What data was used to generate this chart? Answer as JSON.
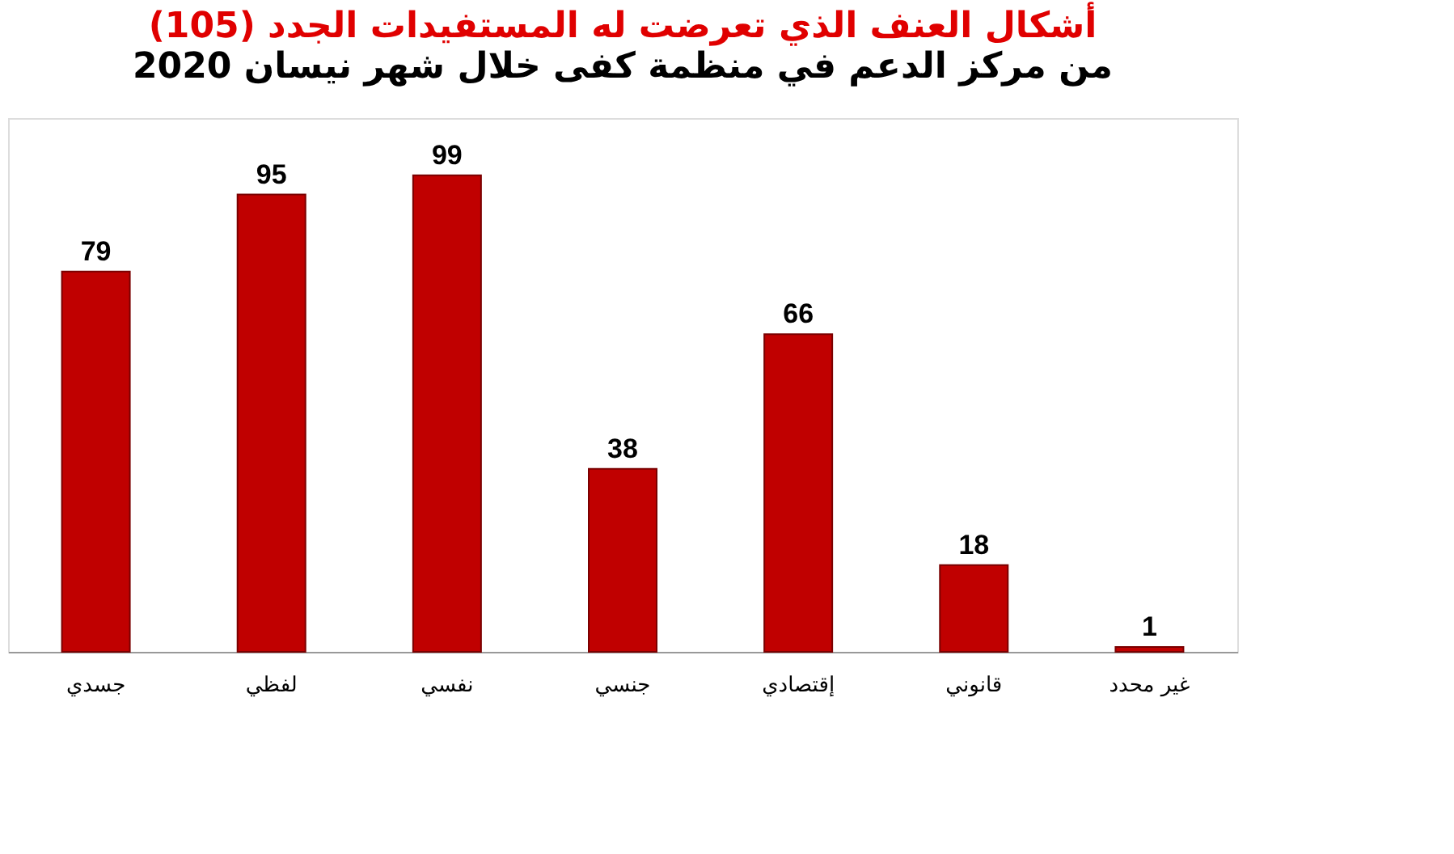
{
  "chart_data": {
    "type": "bar",
    "title": "أشكال العنف الذي تعرضت له المستفيدات الجدد (105)",
    "subtitle": "من مركز الدعم في منظمة كفى خلال شهر نيسان 2020",
    "categories": [
      "جسدي",
      "لفظي",
      "نفسي",
      "جنسي",
      "إقتصادي",
      "قانوني",
      "غير محدد"
    ],
    "values": [
      79,
      95,
      99,
      38,
      66,
      18,
      1
    ],
    "color": "#c00000",
    "data_labels": true,
    "grid": false,
    "tick_labels": "x"
  }
}
